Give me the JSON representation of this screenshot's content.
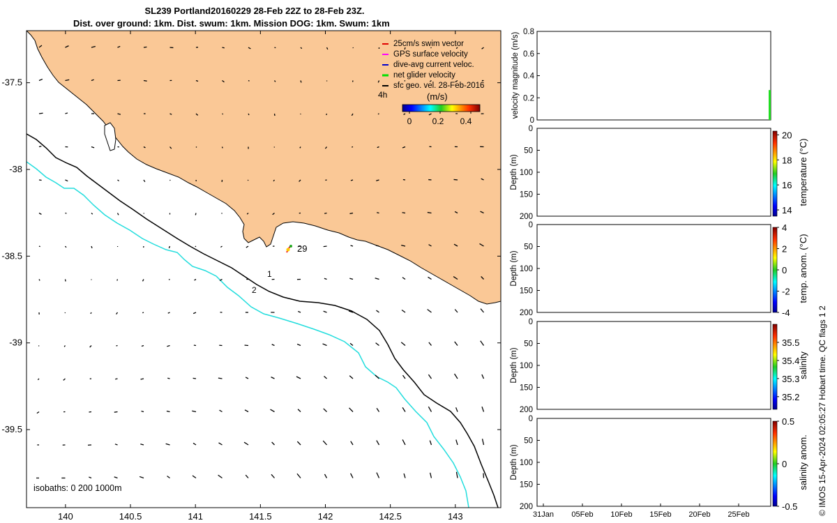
{
  "title": {
    "line1": "SL239 Portland20160229 28-Feb 22Z to 28-Feb 23Z.",
    "line2": "Dist. over ground: 1km. Dist. swum: 1km. Mission DOG: 1km. Swum: 1km"
  },
  "map": {
    "lon_ticks": [
      "140",
      "140.5",
      "141",
      "141.5",
      "142",
      "142.5",
      "143"
    ],
    "lon_values": [
      140,
      140.5,
      141,
      141.5,
      142,
      142.5,
      143
    ],
    "lat_ticks": [
      "-37.5",
      "-38",
      "-38.5",
      "-39",
      "-39.5"
    ],
    "lat_values": [
      -37.5,
      -38,
      -38.5,
      -39,
      -39.5
    ],
    "xlim": [
      139.7,
      143.35
    ],
    "ylim": [
      -39.95,
      -37.2
    ],
    "legend": [
      {
        "label": "25cm/s swim vector",
        "color": "#e00000"
      },
      {
        "label": "GPS surface velocity",
        "color": "#ff00ff"
      },
      {
        "label": "dive-avg current veloc.",
        "color": "#0000cc"
      },
      {
        "label": "net glider velocity",
        "color": "#00e000"
      },
      {
        "label": "sfc geo. vel. 28-Feb-2016",
        "color": "#000000"
      }
    ],
    "duration_label": "4h",
    "colorbar": {
      "label": "(m/s)",
      "ticks": [
        "0",
        "0.2",
        "0.4"
      ],
      "range": [
        0,
        0.5
      ]
    },
    "glider_label": "29",
    "track_labels": [
      "1",
      "2"
    ],
    "isobaths_label": "isobaths: 0   200  1000m",
    "land_color": "#fac896",
    "isobath_200_color": "#000000",
    "isobath_1000_color": "#22dddd"
  },
  "velocity_panel": {
    "ylabel": "velocity magnitude (m/s)",
    "yticks": [
      "0.8",
      "0.6",
      "0.4",
      "0.2",
      "0"
    ],
    "ytick_values": [
      0.8,
      0.6,
      0.4,
      0.2,
      0
    ],
    "ylim": [
      0,
      0.8
    ],
    "bar_value": 0.27,
    "bar_color": "#22dd22"
  },
  "depth_panels": [
    {
      "ylabel": "Depth (m)",
      "yticks": [
        "0",
        "50",
        "100",
        "150",
        "200"
      ],
      "cb_label": "temperature (°C)",
      "cb_ticks": [
        "20",
        "18",
        "16",
        "14"
      ],
      "cb_range": [
        13.5,
        20.3
      ]
    },
    {
      "ylabel": "Depth (m)",
      "yticks": [
        "0",
        "50",
        "100",
        "150",
        "200"
      ],
      "cb_label": "temp. anom. (°C)",
      "cb_ticks": [
        "4",
        "2",
        "0",
        "-2",
        "-4"
      ],
      "cb_range": [
        -4,
        4
      ]
    },
    {
      "ylabel": "Depth (m)",
      "yticks": [
        "0",
        "50",
        "100",
        "150",
        "200"
      ],
      "cb_label": "salinity",
      "cb_ticks": [
        "35.5",
        "35.4",
        "35.3",
        "35.2"
      ],
      "cb_range": [
        35.13,
        35.6
      ]
    },
    {
      "ylabel": "Depth (m)",
      "yticks": [
        "0",
        "50",
        "100",
        "150",
        "200"
      ],
      "cb_label": "salinity anom.",
      "cb_ticks": [
        "0.5",
        "0",
        "-0.5"
      ],
      "cb_range": [
        -0.5,
        0.5
      ]
    }
  ],
  "time_axis": {
    "ticks": [
      "31Jan",
      "05Feb",
      "10Feb",
      "15Feb",
      "20Feb",
      "25Feb"
    ]
  },
  "credit": "© IMOS 15-Apr-2024 02:05:27 Hobart time. QC flags 1  2"
}
